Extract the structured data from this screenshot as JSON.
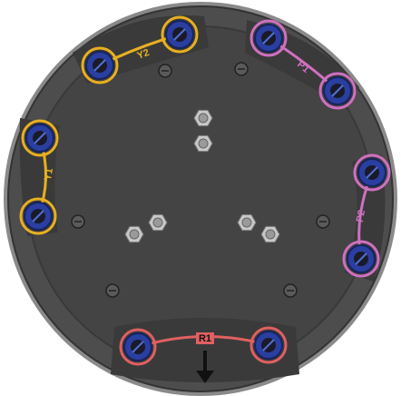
{
  "labels": {
    "y2": "Y2",
    "p1": "P1",
    "y1": "Y1",
    "p2": "P2",
    "r1": "R1"
  }
}
